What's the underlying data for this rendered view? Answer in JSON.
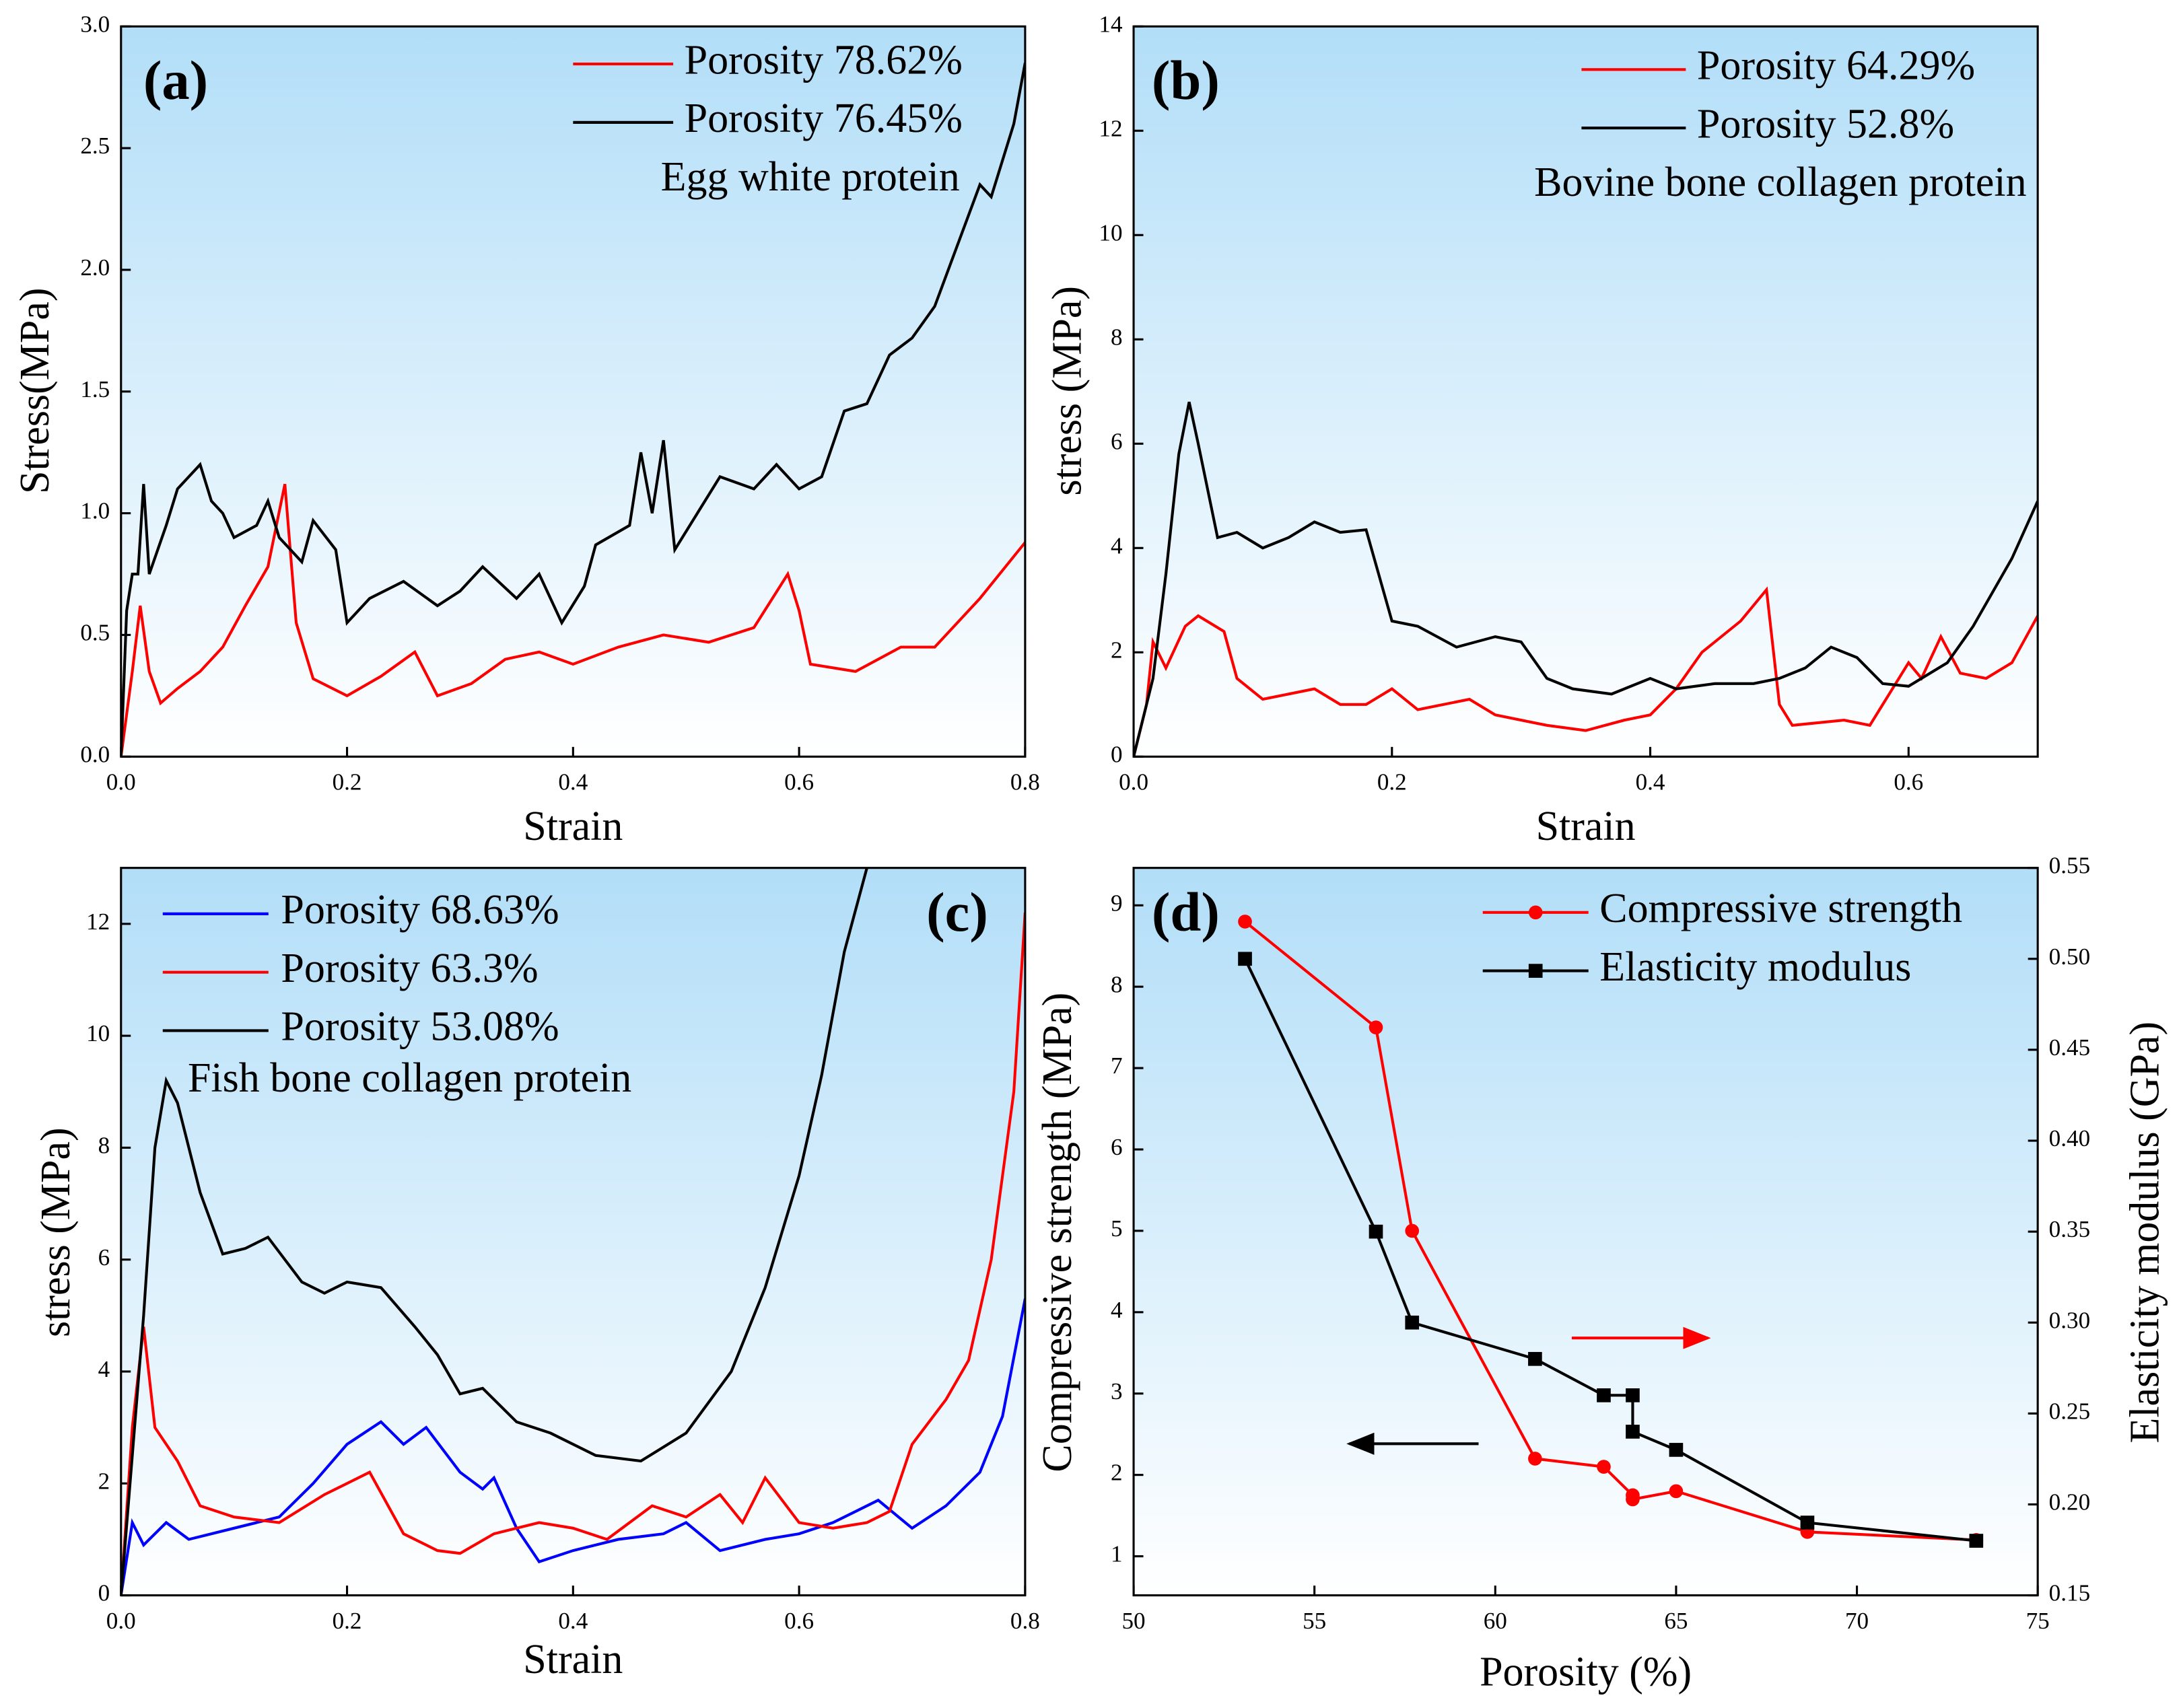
{
  "chart_data": [
    {
      "type": "line",
      "panel_label": "(a)",
      "annotation": "Egg white protein",
      "xlabel": "Strain",
      "ylabel": "Stress(MPa)",
      "xlim": [
        0,
        0.8
      ],
      "ylim": [
        0,
        3
      ],
      "xticks": [
        {
          "value": 0,
          "label": "0.0"
        },
        0.2,
        0.4,
        0.6,
        0.8
      ],
      "yticks": [
        {
          "value": 0,
          "label": "0.0"
        },
        0.5,
        {
          "value": 1,
          "label": "1.0"
        },
        1.5,
        {
          "value": 2,
          "label": "2.0"
        },
        2.5,
        {
          "value": 3,
          "label": "3.0"
        }
      ],
      "legend": "upper right",
      "series": [
        {
          "name": "Porosity 78.62%",
          "color": "#ff0000",
          "x": [
            0,
            0.01,
            0.017,
            0.025,
            0.035,
            0.05,
            0.07,
            0.09,
            0.11,
            0.13,
            0.145,
            0.155,
            0.17,
            0.2,
            0.23,
            0.26,
            0.28,
            0.31,
            0.34,
            0.37,
            0.4,
            0.44,
            0.48,
            0.52,
            0.56,
            0.59,
            0.6,
            0.61,
            0.65,
            0.69,
            0.72,
            0.76,
            0.8
          ],
          "values": [
            0,
            0.35,
            0.62,
            0.35,
            0.22,
            0.28,
            0.35,
            0.45,
            0.62,
            0.78,
            1.12,
            0.55,
            0.32,
            0.25,
            0.33,
            0.43,
            0.25,
            0.3,
            0.4,
            0.43,
            0.38,
            0.45,
            0.5,
            0.47,
            0.53,
            0.75,
            0.6,
            0.38,
            0.35,
            0.45,
            0.45,
            0.65,
            0.88
          ]
        },
        {
          "name": "Porosity 76.45%",
          "color": "#000000",
          "x": [
            0,
            0.005,
            0.01,
            0.015,
            0.02,
            0.025,
            0.04,
            0.05,
            0.06,
            0.07,
            0.08,
            0.09,
            0.1,
            0.12,
            0.13,
            0.14,
            0.16,
            0.17,
            0.19,
            0.2,
            0.22,
            0.25,
            0.28,
            0.3,
            0.32,
            0.35,
            0.37,
            0.39,
            0.41,
            0.42,
            0.45,
            0.46,
            0.47,
            0.48,
            0.49,
            0.51,
            0.53,
            0.56,
            0.58,
            0.6,
            0.62,
            0.64,
            0.66,
            0.68,
            0.7,
            0.72,
            0.74,
            0.76,
            0.77,
            0.79,
            0.8
          ],
          "values": [
            0,
            0.6,
            0.75,
            0.75,
            1.12,
            0.75,
            0.95,
            1.1,
            1.15,
            1.2,
            1.05,
            1.0,
            0.9,
            0.95,
            1.05,
            0.9,
            0.8,
            0.97,
            0.85,
            0.55,
            0.65,
            0.72,
            0.62,
            0.68,
            0.78,
            0.65,
            0.75,
            0.55,
            0.7,
            0.87,
            0.95,
            1.25,
            1.0,
            1.3,
            0.85,
            1.0,
            1.15,
            1.1,
            1.2,
            1.1,
            1.15,
            1.42,
            1.45,
            1.65,
            1.72,
            1.85,
            2.1,
            2.35,
            2.3,
            2.6,
            2.85
          ]
        }
      ]
    },
    {
      "type": "line",
      "panel_label": "(b)",
      "annotation": "Bovine bone collagen protein",
      "xlabel": "Strain",
      "ylabel": "stress (MPa)",
      "xlim": [
        0,
        0.7
      ],
      "ylim": [
        0,
        14
      ],
      "xticks": [
        {
          "value": 0,
          "label": "0.0"
        },
        0.2,
        0.4,
        0.6
      ],
      "yticks": [
        0,
        2,
        4,
        6,
        8,
        10,
        12,
        14
      ],
      "legend": "upper right",
      "series": [
        {
          "name": "Porosity 64.29%",
          "color": "#ff0000",
          "x": [
            0,
            0.01,
            0.015,
            0.025,
            0.04,
            0.05,
            0.07,
            0.08,
            0.1,
            0.12,
            0.14,
            0.16,
            0.18,
            0.2,
            0.22,
            0.26,
            0.28,
            0.32,
            0.35,
            0.38,
            0.4,
            0.42,
            0.44,
            0.47,
            0.49,
            0.5,
            0.51,
            0.55,
            0.57,
            0.6,
            0.61,
            0.625,
            0.64,
            0.66,
            0.68,
            0.7
          ],
          "values": [
            0,
            1.0,
            2.2,
            1.7,
            2.5,
            2.7,
            2.4,
            1.5,
            1.1,
            1.2,
            1.3,
            1.0,
            1.0,
            1.3,
            0.9,
            1.1,
            0.8,
            0.6,
            0.5,
            0.7,
            0.8,
            1.3,
            2.0,
            2.6,
            3.2,
            1.0,
            0.6,
            0.7,
            0.6,
            1.8,
            1.5,
            2.3,
            1.6,
            1.5,
            1.8,
            2.7
          ]
        },
        {
          "name": "Porosity 52.8%",
          "color": "#000000",
          "x": [
            0,
            0.015,
            0.025,
            0.035,
            0.043,
            0.05,
            0.065,
            0.08,
            0.1,
            0.12,
            0.14,
            0.16,
            0.18,
            0.2,
            0.22,
            0.25,
            0.28,
            0.3,
            0.32,
            0.34,
            0.37,
            0.4,
            0.42,
            0.45,
            0.48,
            0.5,
            0.52,
            0.54,
            0.56,
            0.58,
            0.6,
            0.63,
            0.65,
            0.68,
            0.7
          ],
          "values": [
            0,
            1.5,
            3.5,
            5.8,
            6.8,
            6.0,
            4.2,
            4.3,
            4.0,
            4.2,
            4.5,
            4.3,
            4.35,
            2.6,
            2.5,
            2.1,
            2.3,
            2.2,
            1.5,
            1.3,
            1.2,
            1.5,
            1.3,
            1.4,
            1.4,
            1.5,
            1.7,
            2.1,
            1.9,
            1.4,
            1.35,
            1.8,
            2.5,
            3.8,
            4.9
          ]
        }
      ]
    },
    {
      "type": "line",
      "panel_label": "(c)",
      "annotation": "Fish bone collagen protein",
      "xlabel": "Strain",
      "ylabel": "stress (MPa)",
      "xlim": [
        0,
        0.8
      ],
      "ylim": [
        0,
        13
      ],
      "xticks": [
        {
          "value": 0,
          "label": "0.0"
        },
        0.2,
        0.4,
        0.6,
        0.8
      ],
      "yticks": [
        0,
        2,
        4,
        6,
        8,
        10,
        12
      ],
      "legend": "upper left",
      "series": [
        {
          "name": "Porosity 68.63%",
          "color": "#0000ff",
          "x": [
            0,
            0.01,
            0.02,
            0.04,
            0.06,
            0.1,
            0.14,
            0.17,
            0.2,
            0.23,
            0.25,
            0.27,
            0.3,
            0.32,
            0.33,
            0.35,
            0.37,
            0.4,
            0.44,
            0.48,
            0.5,
            0.53,
            0.57,
            0.6,
            0.63,
            0.67,
            0.7,
            0.73,
            0.76,
            0.78,
            0.8
          ],
          "values": [
            0,
            1.3,
            0.9,
            1.3,
            1.0,
            1.2,
            1.4,
            2.0,
            2.7,
            3.1,
            2.7,
            3.0,
            2.2,
            1.9,
            2.1,
            1.2,
            0.6,
            0.8,
            1.0,
            1.1,
            1.3,
            0.8,
            1.0,
            1.1,
            1.3,
            1.7,
            1.2,
            1.6,
            2.2,
            3.2,
            5.3
          ]
        },
        {
          "name": "Porosity 63.3%",
          "color": "#ff0000",
          "x": [
            0,
            0.01,
            0.02,
            0.03,
            0.05,
            0.07,
            0.1,
            0.14,
            0.18,
            0.22,
            0.25,
            0.28,
            0.3,
            0.33,
            0.37,
            0.4,
            0.43,
            0.47,
            0.5,
            0.53,
            0.55,
            0.57,
            0.6,
            0.63,
            0.66,
            0.68,
            0.7,
            0.73,
            0.75,
            0.77,
            0.79,
            0.8
          ],
          "values": [
            0,
            3.0,
            4.8,
            3.0,
            2.4,
            1.6,
            1.4,
            1.3,
            1.8,
            2.2,
            1.1,
            0.8,
            0.75,
            1.1,
            1.3,
            1.2,
            1.0,
            1.6,
            1.4,
            1.8,
            1.3,
            2.1,
            1.3,
            1.2,
            1.3,
            1.5,
            2.7,
            3.5,
            4.2,
            6.0,
            9.0,
            12.2
          ]
        },
        {
          "name": "Porosity 53.08%",
          "color": "#000000",
          "x": [
            0,
            0.02,
            0.03,
            0.04,
            0.05,
            0.07,
            0.09,
            0.11,
            0.13,
            0.16,
            0.18,
            0.2,
            0.23,
            0.26,
            0.28,
            0.3,
            0.32,
            0.35,
            0.38,
            0.42,
            0.46,
            0.5,
            0.54,
            0.57,
            0.6,
            0.62,
            0.64,
            0.66
          ],
          "values": [
            0,
            5.0,
            8.0,
            9.2,
            8.8,
            7.2,
            6.1,
            6.2,
            6.4,
            5.6,
            5.4,
            5.6,
            5.5,
            4.8,
            4.3,
            3.6,
            3.7,
            3.1,
            2.9,
            2.5,
            2.4,
            2.9,
            4.0,
            5.5,
            7.5,
            9.3,
            11.5,
            13.0
          ]
        }
      ]
    },
    {
      "type": "line",
      "panel_label": "(d)",
      "xlabel": "Porosity (%)",
      "ylabel": "Compressive strength (MPa)",
      "y2label": "Elasticity modulus (GPa)",
      "xlim": [
        50,
        75
      ],
      "ylim": [
        0.52,
        9.46
      ],
      "y2lim": [
        0.15,
        0.55
      ],
      "xticks": [
        50,
        55,
        60,
        65,
        70,
        75
      ],
      "yticks": [
        1,
        2,
        3,
        4,
        5,
        6,
        7,
        8,
        9
      ],
      "y2ticks": [
        0.15,
        {
          "value": 0.2,
          "label": "0.20"
        },
        0.25,
        {
          "value": 0.3,
          "label": "0.30"
        },
        0.35,
        {
          "value": 0.4,
          "label": "0.40"
        },
        0.45,
        {
          "value": 0.5,
          "label": "0.50"
        },
        0.55
      ],
      "legend": "upper right",
      "series": [
        {
          "name": "Compressive strength",
          "color": "#ff0000",
          "marker": "circle",
          "x": [
            53.08,
            56.7,
            57.7,
            61.1,
            63.0,
            63.8,
            63.8,
            65.0,
            68.63,
            73.3
          ],
          "values": [
            8.8,
            7.5,
            5.0,
            2.2,
            2.1,
            1.75,
            1.7,
            1.8,
            1.3,
            1.2
          ]
        },
        {
          "name": "Elasticity modulus",
          "color": "#000000",
          "marker": "square",
          "axis": "y2",
          "x": [
            53.08,
            56.7,
            57.7,
            61.1,
            63.0,
            63.8,
            63.8,
            65.0,
            68.63,
            73.3
          ],
          "values": [
            0.5,
            0.35,
            0.3,
            0.28,
            0.26,
            0.26,
            0.24,
            0.23,
            0.19,
            0.18
          ]
        }
      ]
    }
  ]
}
